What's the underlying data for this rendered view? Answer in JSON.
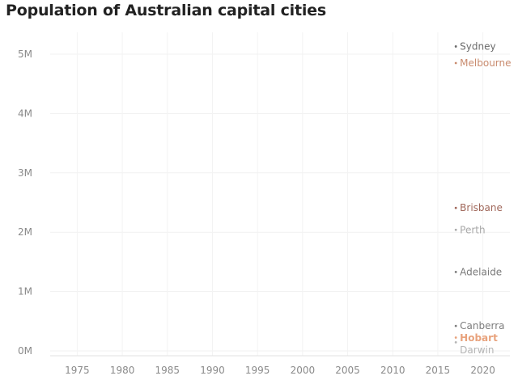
{
  "chart_data": {
    "type": "line",
    "title": "Population of Australian capital cities",
    "xlabel": "",
    "ylabel": "",
    "xlim": [
      1972,
      2023
    ],
    "ylim": [
      0,
      5300000
    ],
    "x_ticks": [
      1975,
      1980,
      1985,
      1990,
      1995,
      2000,
      2005,
      2010,
      2015,
      2020
    ],
    "y_ticks": [
      {
        "value": 0,
        "label": "0M"
      },
      {
        "value": 1000000,
        "label": "1M"
      },
      {
        "value": 2000000,
        "label": "2M"
      },
      {
        "value": 3000000,
        "label": "3M"
      },
      {
        "value": 4000000,
        "label": "4M"
      },
      {
        "value": 5000000,
        "label": "5M"
      }
    ],
    "grid": true,
    "series": [
      {
        "name": "Sydney",
        "color": "#6b6b6b",
        "x": [
          2017
        ],
        "values": [
          5130000
        ]
      },
      {
        "name": "Melbourne",
        "color": "#c98b6e",
        "x": [
          2017
        ],
        "values": [
          4850000
        ]
      },
      {
        "name": "Brisbane",
        "color": "#a0675a",
        "x": [
          2017
        ],
        "values": [
          2410000
        ]
      },
      {
        "name": "Perth",
        "color": "#a8a8a8",
        "x": [
          2017
        ],
        "values": [
          2040000
        ]
      },
      {
        "name": "Adelaide",
        "color": "#7a7a7a",
        "x": [
          2017
        ],
        "values": [
          1330000
        ]
      },
      {
        "name": "Canberra",
        "color": "#7d7d7d",
        "x": [
          2017
        ],
        "values": [
          420000
        ]
      },
      {
        "name": "Hobart",
        "color": "#e8a27c",
        "x": [
          2017
        ],
        "values": [
          225000
        ]
      },
      {
        "name": "Darwin",
        "color": "#b5b5b5",
        "x": [
          2017
        ],
        "values": [
          145000
        ]
      }
    ]
  }
}
